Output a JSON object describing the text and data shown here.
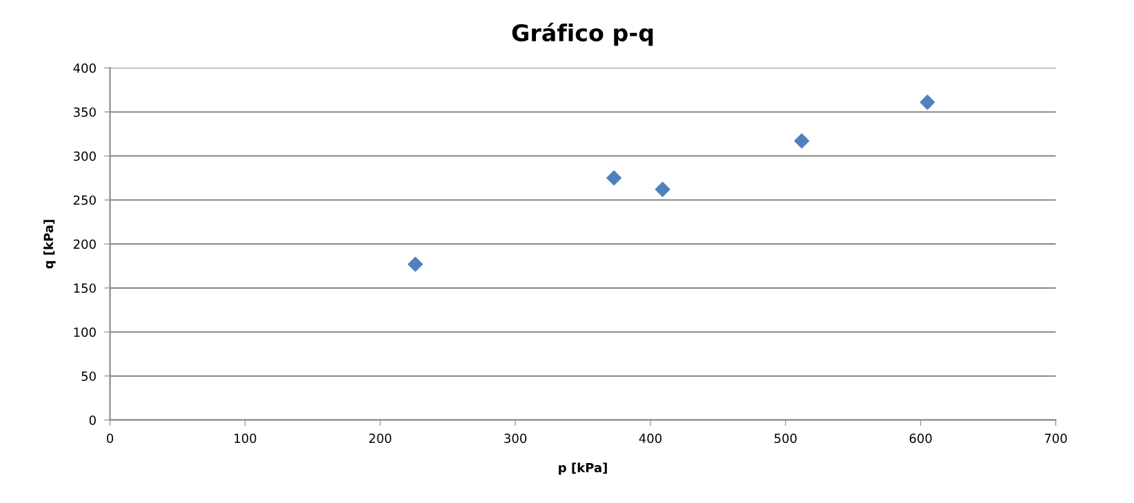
{
  "chart_data": {
    "type": "scatter",
    "title": "Gráfico p-q",
    "xlabel": "p [kPa]",
    "ylabel": "q [kPa]",
    "series": [
      {
        "color": "#4f81bd",
        "x": [
          226,
          373,
          409,
          512,
          605
        ],
        "values": [
          177,
          275,
          262,
          317,
          361
        ]
      }
    ],
    "xlim": [
      0,
      700
    ],
    "xticks": [
      0,
      100,
      200,
      300,
      400,
      500,
      600,
      700
    ],
    "ylim": [
      0,
      400
    ],
    "yticks": [
      0,
      50,
      100,
      150,
      200,
      250,
      300,
      350,
      400
    ],
    "grid": "y",
    "legend": false,
    "marker": "diamond"
  }
}
